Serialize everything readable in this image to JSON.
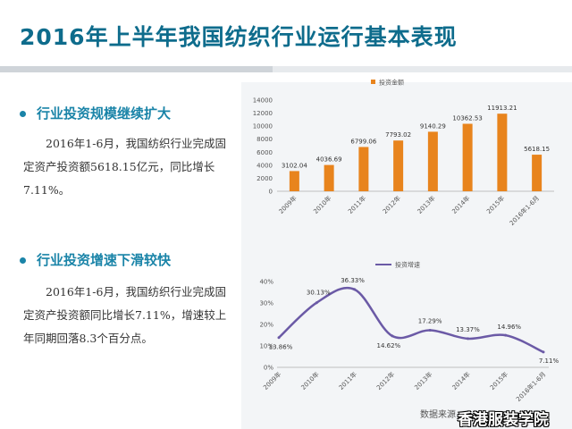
{
  "page": {
    "title": "2016年上半年我国纺织行业运行基本表现",
    "section1": {
      "heading": "行业投资规模继续扩大",
      "text": "2016年1-6月，我国纺织行业完成固定资产投资额5618.15亿元，同比增长7.11%。"
    },
    "section2": {
      "heading": "行业投资增速下滑较快",
      "text": "2016年1-6月，我国纺织行业完成固定资产投资额同比增长7.11%，增速较上年同期回落8.3个百分点。"
    },
    "source": "数据来源：",
    "watermark": "香港服装学院"
  },
  "colors": {
    "title": "#0e6c8c",
    "heading": "#1a84a8",
    "bar": "#e8841d",
    "line": "#6b5aa6"
  },
  "chart_data": [
    {
      "type": "bar",
      "categories": [
        "2009年",
        "2010年",
        "2011年",
        "2012年",
        "2013年",
        "2014年",
        "2015年",
        "2016年1-6月"
      ],
      "series": [
        {
          "name": "投资金额",
          "values": [
            3102.04,
            4036.69,
            6799.06,
            7793.02,
            9140.29,
            10362.53,
            11913.21,
            5618.15
          ]
        }
      ],
      "data_labels": [
        "3102.04",
        "4036.69",
        "6799.06",
        "7793.02",
        "9140.29",
        "10362.53",
        "11913.21",
        "5618.15"
      ],
      "ylim": [
        0,
        14000
      ],
      "yticks": [
        0,
        2000,
        4000,
        6000,
        8000,
        10000,
        12000,
        14000
      ],
      "ytick_labels": [
        "0",
        "2000",
        "4000",
        "6000",
        "8000",
        "10000",
        "12000",
        "14000"
      ],
      "legend_position": "top-left",
      "grid": false
    },
    {
      "type": "line",
      "categories": [
        "2009年",
        "2010年",
        "2011年",
        "2012年",
        "2013年",
        "2014年",
        "2015年",
        "2016年1-6月"
      ],
      "series": [
        {
          "name": "投资增速",
          "values": [
            13.86,
            30.13,
            36.33,
            14.62,
            17.29,
            13.37,
            14.96,
            7.11
          ]
        }
      ],
      "data_labels": [
        "13.86%",
        "30.13%",
        "36.33%",
        "14.62%",
        "17.29%",
        "13.37%",
        "14.96%",
        "7.11%"
      ],
      "ylim": [
        0,
        40
      ],
      "yticks": [
        0,
        10,
        20,
        30,
        40
      ],
      "ytick_labels": [
        "0%",
        "10%",
        "20%",
        "30%",
        "40%"
      ],
      "legend_position": "top-left",
      "smooth": true,
      "grid": false
    }
  ]
}
